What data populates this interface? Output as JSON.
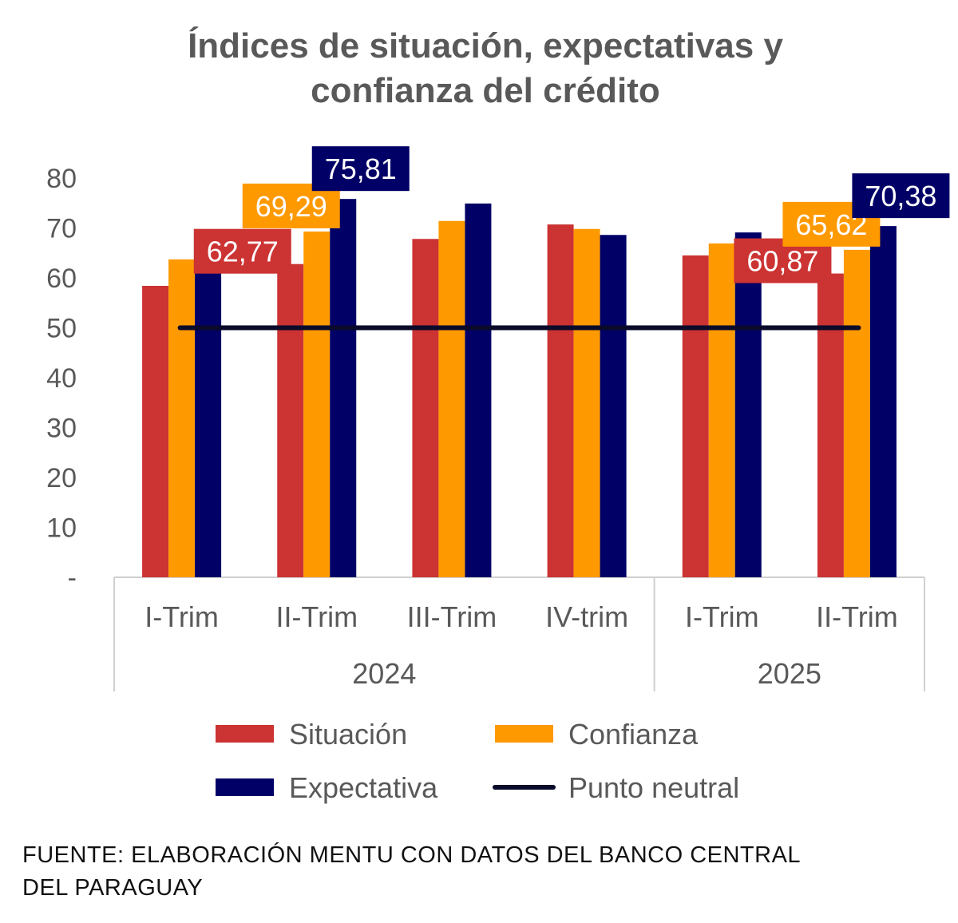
{
  "chart_data": {
    "type": "bar",
    "title": [
      "Índices de situación, expectativas y",
      "confianza del crédito"
    ],
    "categories": [
      "I-Trim",
      "II-Trim",
      "III-Trim",
      "IV-trim",
      "I-Trim",
      "II-Trim"
    ],
    "groups": [
      {
        "label": "2024",
        "span": 4
      },
      {
        "label": "2025",
        "span": 2
      }
    ],
    "series": [
      {
        "name": "Situación",
        "color": "#CC3333",
        "values": [
          58.4,
          62.77,
          67.8,
          70.7,
          64.5,
          60.87
        ]
      },
      {
        "name": "Confianza",
        "color": "#FF9900",
        "values": [
          63.7,
          69.29,
          71.4,
          69.8,
          66.9,
          65.62
        ]
      },
      {
        "name": "Expectativa",
        "color": "#000066",
        "values": [
          69.1,
          75.81,
          74.9,
          68.6,
          69.1,
          70.38
        ]
      }
    ],
    "reference_line": {
      "name": "Punto neutral",
      "value": 50,
      "color": "#0A0A2A"
    },
    "data_labels": [
      {
        "series": 0,
        "index": 1,
        "text": "62,77"
      },
      {
        "series": 1,
        "index": 1,
        "text": "69,29"
      },
      {
        "series": 2,
        "index": 1,
        "text": "75,81"
      },
      {
        "series": 0,
        "index": 5,
        "text": "60,87"
      },
      {
        "series": 1,
        "index": 5,
        "text": "65,62"
      },
      {
        "series": 2,
        "index": 5,
        "text": "70,38"
      }
    ],
    "yticks": [
      0,
      10,
      20,
      30,
      40,
      50,
      60,
      70,
      80
    ],
    "ytick_labels": [
      "-",
      "10",
      "20",
      "30",
      "40",
      "50",
      "60",
      "70",
      "80"
    ],
    "ylim": [
      0,
      80
    ],
    "xlabel": "",
    "ylabel": "",
    "legend_position": "bottom",
    "grid": false
  },
  "source": [
    "FUENTE: ELABORACIÓN MENTU CON DATOS DEL BANCO CENTRAL",
    "DEL PARAGUAY"
  ]
}
